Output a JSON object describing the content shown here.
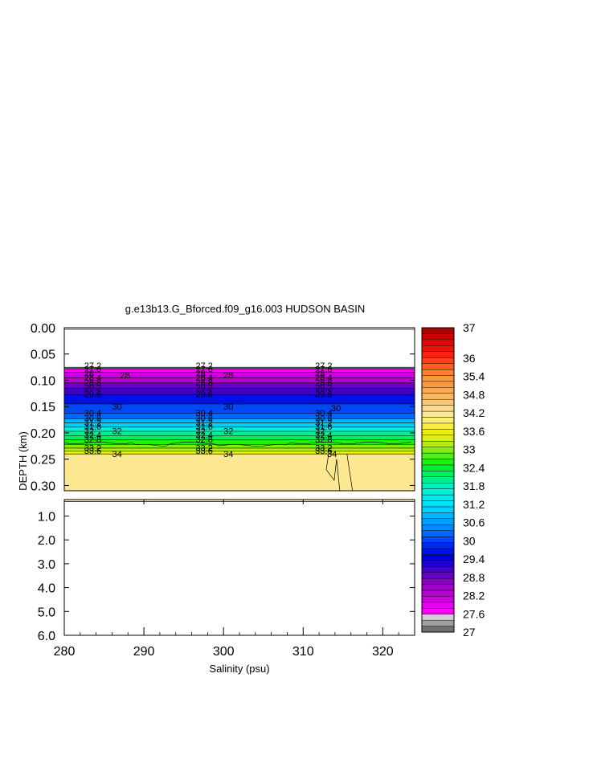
{
  "chart_data": {
    "type": "heatmap",
    "title": "g.e13b13.G_Bforced.f09_g16.003 HUDSON BASIN",
    "xlabel": "Salinity (psu)",
    "ylabel": "DEPTH (km)",
    "xlim": [
      280,
      324
    ],
    "x_ticks": [
      280,
      290,
      300,
      310,
      320
    ],
    "x_tick_labels": [
      "280",
      "290",
      "300",
      "310",
      "320"
    ],
    "upper_panel": {
      "ylim": [
        0.0,
        0.31
      ],
      "y_ticks": [
        0.0,
        0.05,
        0.1,
        0.15,
        0.2,
        0.25,
        0.3
      ],
      "y_tick_labels": [
        "0.00",
        "0.05",
        "0.10",
        "0.15",
        "0.20",
        "0.25",
        "0.30"
      ]
    },
    "lower_panel": {
      "ylim": [
        0.31,
        6.0
      ],
      "y_ticks": [
        1.0,
        2.0,
        3.0,
        4.0,
        5.0,
        6.0
      ],
      "y_tick_labels": [
        "1.0",
        "2.0",
        "3.0",
        "4.0",
        "5.0",
        "6.0"
      ]
    },
    "colorbar": {
      "min": 27,
      "max": 37,
      "step": 0.2,
      "tick_values": [
        27,
        27.6,
        28.2,
        28.8,
        29.4,
        30,
        30.6,
        31.2,
        31.8,
        32.4,
        33,
        33.6,
        34.2,
        34.8,
        35.4,
        36,
        37
      ],
      "tick_labels": [
        "27",
        "27.6",
        "28.2",
        "28.8",
        "29.4",
        "30",
        "30.6",
        "31.2",
        "31.8",
        "32.4",
        "33",
        "33.6",
        "34.2",
        "34.8",
        "35.4",
        "36",
        "37"
      ],
      "colors": [
        "#707070",
        "#a0a0a0",
        "#d0d0d0",
        "#ff00ff",
        "#e800f0",
        "#d000e0",
        "#b800d0",
        "#a000c8",
        "#8800c0",
        "#6400c4",
        "#4000c8",
        "#2000d0",
        "#0000d8",
        "#0010e8",
        "#0028f0",
        "#0048f8",
        "#0068ff",
        "#0088ff",
        "#00a0ff",
        "#00b8ff",
        "#00cfff",
        "#00e0f8",
        "#00ecec",
        "#00f0d8",
        "#00f0b8",
        "#00f090",
        "#00f060",
        "#00f030",
        "#20f010",
        "#50f010",
        "#80f010",
        "#b0f010",
        "#d8f010",
        "#f0f000",
        "#f8f030",
        "#fcf070",
        "#fce890",
        "#fcd890",
        "#fcc870",
        "#fcb860",
        "#fca850",
        "#f89840",
        "#f89838",
        "#ff8030",
        "#ff6020",
        "#ff4018",
        "#ff2010",
        "#f01010",
        "#e00808",
        "#d00000",
        "#b00000"
      ]
    },
    "contour_label_columns": [
      282.5,
      296.5,
      311.5
    ],
    "contour_labels": [
      {
        "text": "27.2",
        "depth": 0.072
      },
      {
        "text": "27.6",
        "depth": 0.079
      },
      {
        "text": "28",
        "depth": 0.086
      },
      {
        "text": "28.4",
        "depth": 0.095
      },
      {
        "text": "28.8",
        "depth": 0.104
      },
      {
        "text": "29.2",
        "depth": 0.114
      },
      {
        "text": "29.6",
        "depth": 0.126
      },
      {
        "text": "30.4",
        "depth": 0.162
      },
      {
        "text": "30.8",
        "depth": 0.172
      },
      {
        "text": "31.2",
        "depth": 0.18
      },
      {
        "text": "31.6",
        "depth": 0.188
      },
      {
        "text": "32",
        "depth": 0.196
      },
      {
        "text": "32.4",
        "depth": 0.204
      },
      {
        "text": "32.8",
        "depth": 0.212
      },
      {
        "text": "33.2",
        "depth": 0.228
      },
      {
        "text": "33.6",
        "depth": 0.234
      }
    ],
    "extra_contour_labels": [
      {
        "text": "28",
        "x": 287.0,
        "depth": 0.09
      },
      {
        "text": "30",
        "x": 286.0,
        "depth": 0.15
      },
      {
        "text": "32",
        "x": 286.0,
        "depth": 0.196
      },
      {
        "text": "34",
        "x": 286.0,
        "depth": 0.24
      },
      {
        "text": "28",
        "x": 300.0,
        "depth": 0.09
      },
      {
        "text": "30",
        "x": 300.0,
        "depth": 0.15
      },
      {
        "text": "32",
        "x": 300.0,
        "depth": 0.196
      },
      {
        "text": "34",
        "x": 300.0,
        "depth": 0.24
      },
      {
        "text": "30",
        "x": 313.5,
        "depth": 0.153
      },
      {
        "text": "34",
        "x": 313.0,
        "depth": 0.24
      }
    ],
    "profile": [
      {
        "depth": 0.075,
        "value": 27.0
      },
      {
        "depth": 0.078,
        "value": 27.6
      },
      {
        "depth": 0.085,
        "value": 28.0
      },
      {
        "depth": 0.095,
        "value": 28.4
      },
      {
        "depth": 0.105,
        "value": 28.8
      },
      {
        "depth": 0.115,
        "value": 29.2
      },
      {
        "depth": 0.127,
        "value": 29.6
      },
      {
        "depth": 0.145,
        "value": 30.0
      },
      {
        "depth": 0.163,
        "value": 30.4
      },
      {
        "depth": 0.173,
        "value": 30.8
      },
      {
        "depth": 0.181,
        "value": 31.2
      },
      {
        "depth": 0.189,
        "value": 31.6
      },
      {
        "depth": 0.197,
        "value": 32.0
      },
      {
        "depth": 0.205,
        "value": 32.4
      },
      {
        "depth": 0.213,
        "value": 32.8
      },
      {
        "depth": 0.222,
        "value": 33.0
      },
      {
        "depth": 0.229,
        "value": 33.2
      },
      {
        "depth": 0.235,
        "value": 33.6
      },
      {
        "depth": 0.24,
        "value": 34.4
      },
      {
        "depth": 0.31,
        "value": 34.4
      }
    ],
    "deep_value": 34.4
  }
}
